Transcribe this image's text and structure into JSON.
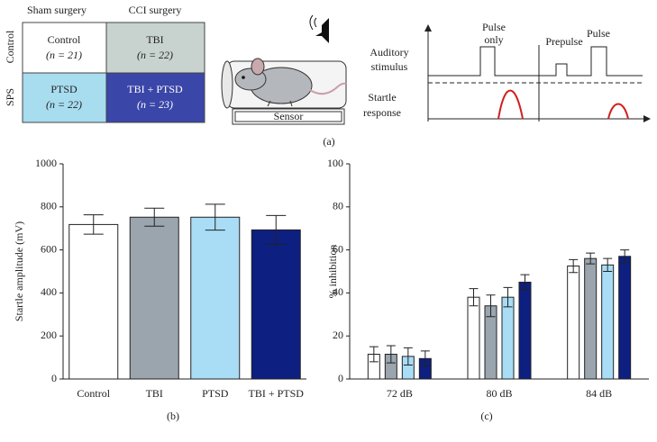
{
  "panel_a": {
    "caption": "(a)",
    "grid": {
      "columns": [
        "Sham surgery",
        "CCI surgery"
      ],
      "rows": [
        "Control",
        "SPS"
      ],
      "cells": [
        [
          {
            "group": "Control",
            "n": "(n = 21)"
          },
          {
            "group": "TBI",
            "n": "(n = 22)"
          }
        ],
        [
          {
            "group": "PTSD",
            "n": "(n = 22)"
          },
          {
            "group": "TBI + PTSD",
            "n": "(n = 23)"
          }
        ]
      ]
    },
    "sensor": "Sensor",
    "stimulus": {
      "auditory": [
        "Auditory",
        "stimulus"
      ],
      "startle": [
        "Startle",
        "response"
      ],
      "pulse_only": [
        "Pulse",
        "only"
      ],
      "prepulse": "Prepulse",
      "pulse": "Pulse"
    }
  },
  "chart_data": [
    {
      "type": "bar",
      "caption": "(b)",
      "y_label": "Startle amplitude (mV)",
      "categories": [
        "Control",
        "TBI",
        "PTSD",
        "TBI + PTSD"
      ],
      "values": [
        718,
        752,
        752,
        693
      ],
      "errors": [
        45,
        42,
        60,
        67
      ],
      "colors": [
        "#ffffff",
        "#9aa5ae",
        "#a9dcf5",
        "#0d1f80"
      ],
      "ylim": [
        0,
        1000
      ],
      "yticks": [
        0,
        200,
        400,
        600,
        800,
        1000
      ]
    },
    {
      "type": "grouped-bar",
      "caption": "(c)",
      "y_label": "% inhibition",
      "categories": [
        "72 dB",
        "80 dB",
        "84 dB"
      ],
      "series": [
        {
          "color": "#ffffff",
          "values": [
            11.5,
            38,
            52.5
          ],
          "errors": [
            3.5,
            4,
            3
          ]
        },
        {
          "color": "#9aa5ae",
          "values": [
            11.5,
            34,
            56
          ],
          "errors": [
            4,
            5,
            2.5
          ]
        },
        {
          "color": "#a9dcf5",
          "values": [
            10.5,
            38,
            53
          ],
          "errors": [
            4,
            4.5,
            3
          ]
        },
        {
          "color": "#0d1f80",
          "values": [
            9.5,
            45,
            57
          ],
          "errors": [
            3.5,
            3.5,
            3
          ]
        }
      ],
      "ylim": [
        0,
        100
      ],
      "yticks": [
        0,
        20,
        40,
        60,
        80,
        100
      ]
    }
  ]
}
